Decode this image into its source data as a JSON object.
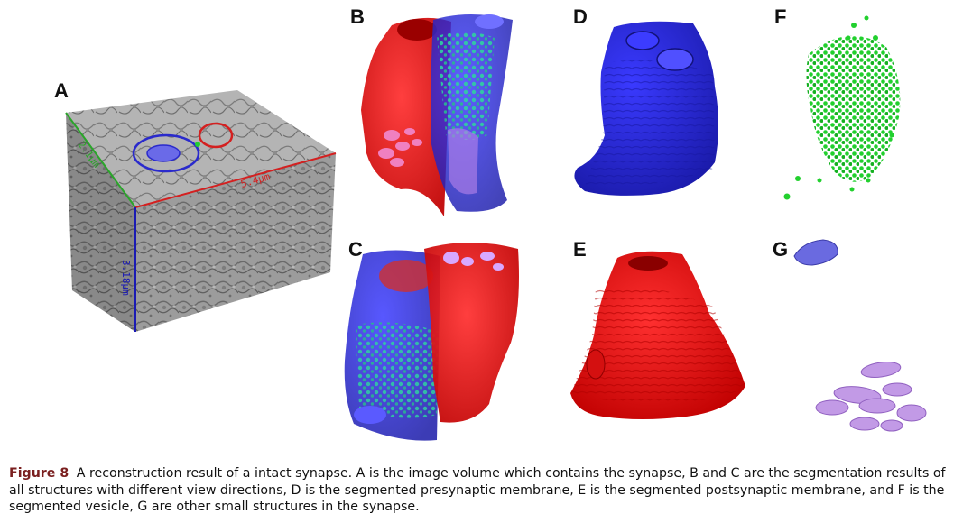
{
  "panels": {
    "a": "A",
    "b": "B",
    "c": "C",
    "d": "D",
    "e": "E",
    "f": "F",
    "g": "G"
  },
  "volume_dims": {
    "width": "5.4μm",
    "depth": "2.1μm",
    "height": "3.18μm"
  },
  "caption": {
    "label": "Figure 8",
    "text": "A reconstruction result of a intact synapse. A is the image volume which contains the synapse, B and C are the segmentation results of all structures with different view directions, D is the segmented presynaptic membrane, E is the segmented postsynaptic membrane, and F is the segmented vesicle, G are other small structures in the synapse."
  },
  "colors": {
    "presynaptic": "#2a2acc",
    "postsynaptic": "#e01010",
    "vesicle": "#22cc33",
    "other": "#c29ae6",
    "axis_x": "#d42020",
    "axis_y": "#2aa52a",
    "axis_z": "#1a1ab4"
  }
}
